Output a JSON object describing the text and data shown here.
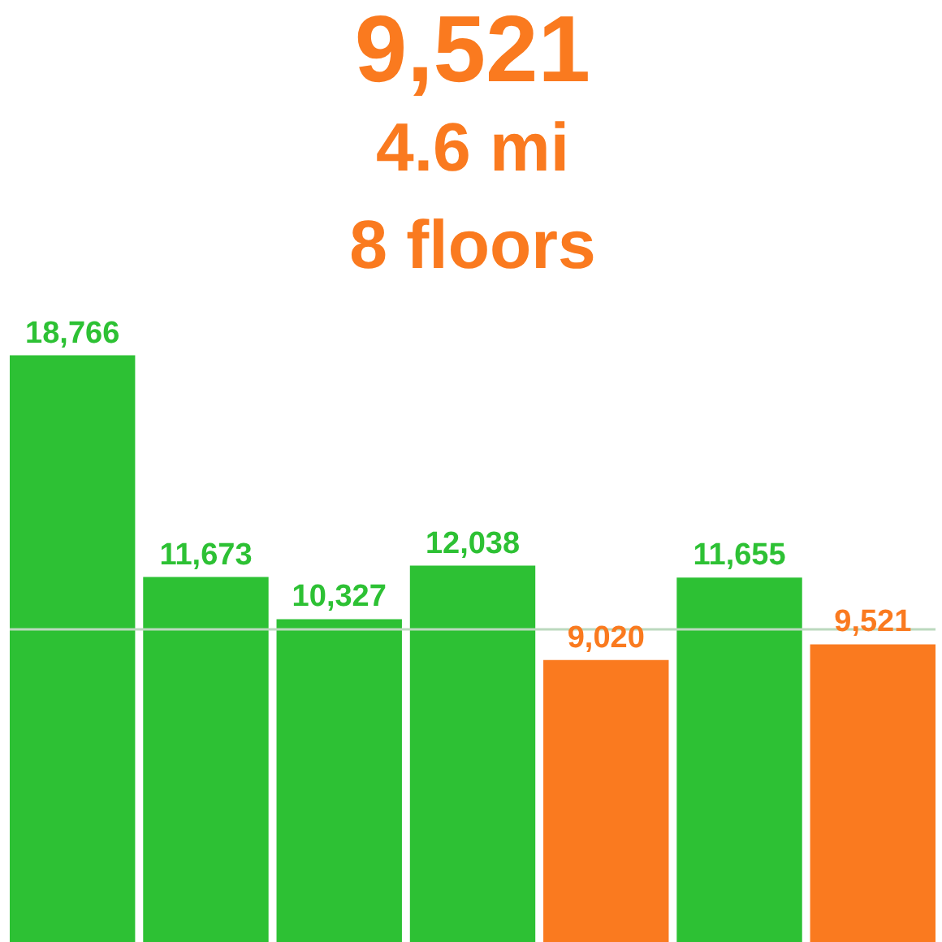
{
  "chart_data": {
    "type": "bar",
    "title": "9,521",
    "subtitle": "4.6 mi\n8 floors",
    "categories": [
      null,
      null,
      null,
      null,
      null,
      null,
      null
    ],
    "values": [
      18766,
      11673,
      10327,
      12038,
      9020,
      11655,
      9521
    ],
    "value_labels": [
      "18,766",
      "11,673",
      "10,327",
      "12,038",
      "9,020",
      "11,655",
      "9,521"
    ],
    "colors": [
      "#2dc134",
      "#2dc134",
      "#2dc134",
      "#2dc134",
      "#fa7a1f",
      "#2dc134",
      "#fa7a1f"
    ],
    "tick_labels": false,
    "ref_lines": [
      {
        "axis": "y",
        "value": 10000,
        "color": "#bcd9be"
      }
    ]
  }
}
